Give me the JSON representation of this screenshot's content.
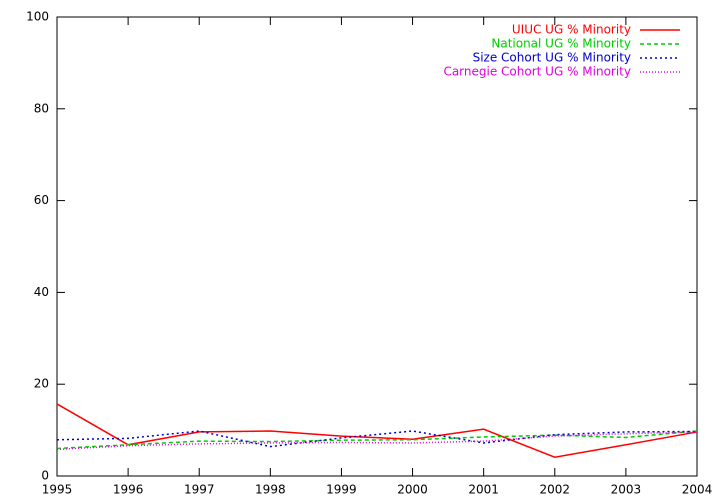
{
  "chart_data": {
    "type": "line",
    "x": [
      1995,
      1996,
      1997,
      1998,
      1999,
      2000,
      2001,
      2002,
      2003,
      2004
    ],
    "xlim": [
      1995,
      2004
    ],
    "xticks": [
      1995,
      1996,
      1997,
      1998,
      1999,
      2000,
      2001,
      2002,
      2003,
      2004
    ],
    "ylim": [
      0,
      100
    ],
    "yticks": [
      0,
      20,
      40,
      60,
      80,
      100
    ],
    "grid": false,
    "legend": "top-right",
    "series": [
      {
        "name": "UIUC UG % Minority",
        "color": "#ff0000",
        "dash": "none",
        "values": [
          15.7,
          6.8,
          9.6,
          9.8,
          8.7,
          8.0,
          10.2,
          4.1,
          6.8,
          9.6
        ]
      },
      {
        "name": "National UG % Minority",
        "color": "#00cc00",
        "dash": "4,3",
        "values": [
          6.0,
          6.8,
          7.6,
          7.5,
          7.8,
          7.9,
          8.5,
          8.9,
          8.4,
          9.8
        ]
      },
      {
        "name": "Size Cohort UG % Minority",
        "color": "#0000cc",
        "dash": "2,3",
        "values": [
          7.9,
          8.2,
          9.8,
          6.4,
          8.3,
          9.8,
          7.2,
          9.0,
          9.6,
          9.7
        ]
      },
      {
        "name": "Carnegie Cohort UG % Minority",
        "color": "#dd00dd",
        "dash": "1,2",
        "values": [
          5.8,
          6.6,
          7.0,
          7.2,
          7.3,
          7.2,
          7.6,
          8.7,
          9.2,
          9.6
        ]
      }
    ]
  }
}
